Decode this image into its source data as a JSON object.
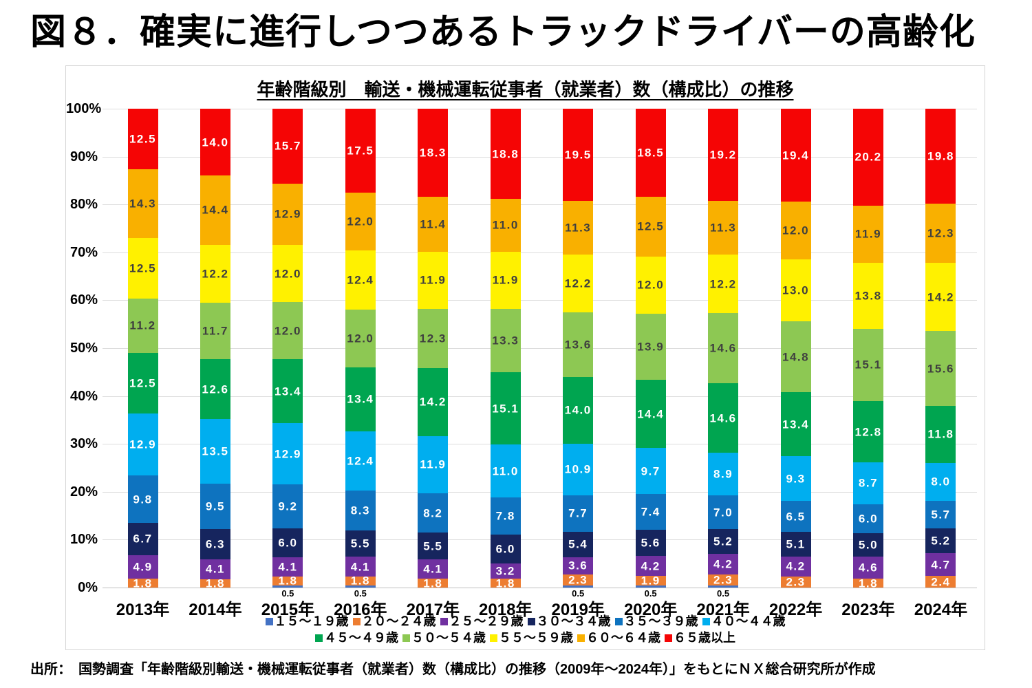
{
  "page_title": "図８．確実に進行しつつあるトラックドライバーの高齢化",
  "source_note": "出所：　国勢調査「年齢階級別輸送・機械運転従事者（就業者）数（構成比）の推移（2009年～2024年）」をもとにＮＸ総合研究所が作成",
  "chart_data": {
    "type": "bar",
    "subtype": "100%-stacked-column",
    "title": "年齢階級別　輸送・機械運転従事者（就業者）数（構成比）の推移",
    "categories": [
      "2013年",
      "2014年",
      "2015年",
      "2016年",
      "2017年",
      "2018年",
      "2019年",
      "2020年",
      "2021年",
      "2022年",
      "2023年",
      "2024年"
    ],
    "y_ticks": [
      "0%",
      "10%",
      "20%",
      "30%",
      "40%",
      "50%",
      "60%",
      "70%",
      "80%",
      "90%",
      "100%"
    ],
    "ylim": [
      0,
      100
    ],
    "grid": true,
    "legend_position": "bottom",
    "value_unit": "%",
    "note": "segments smaller than 1% are labeled beneath the axis",
    "series": [
      {
        "name": "１５～１９歳",
        "color": "#4472c4",
        "label_color": "#000000",
        "values": [
          null,
          null,
          0.5,
          0.5,
          null,
          null,
          0.5,
          0.5,
          0.5,
          null,
          null,
          null
        ]
      },
      {
        "name": "２０～２４歳",
        "color": "#ed7d31",
        "label_color": "#ffffff",
        "values": [
          1.8,
          1.8,
          1.8,
          1.8,
          1.8,
          1.8,
          2.3,
          1.9,
          2.3,
          2.3,
          1.8,
          2.4
        ]
      },
      {
        "name": "２５～２９歳",
        "color": "#7030a0",
        "label_color": "#ffffff",
        "values": [
          4.9,
          4.1,
          4.1,
          4.1,
          4.1,
          3.2,
          3.6,
          4.2,
          4.2,
          4.2,
          4.6,
          4.7
        ]
      },
      {
        "name": "３０～３４歳",
        "color": "#16255e",
        "label_color": "#ffffff",
        "values": [
          6.7,
          6.3,
          6.0,
          5.5,
          5.5,
          6.0,
          5.4,
          5.6,
          5.2,
          5.1,
          5.0,
          5.2
        ]
      },
      {
        "name": "３５～３９歳",
        "color": "#0e73bf",
        "label_color": "#ffffff",
        "values": [
          9.8,
          9.5,
          9.2,
          8.3,
          8.2,
          7.8,
          7.7,
          7.4,
          7.0,
          6.5,
          6.0,
          5.7
        ]
      },
      {
        "name": "４０～４４歳",
        "color": "#00aeef",
        "label_color": "#ffffff",
        "values": [
          12.9,
          13.5,
          12.9,
          12.4,
          11.9,
          11.0,
          10.9,
          9.7,
          8.9,
          9.3,
          8.7,
          8.0
        ]
      },
      {
        "name": "４５～４９歳",
        "color": "#00a550",
        "label_color": "#ffffff",
        "values": [
          12.5,
          12.6,
          13.4,
          13.4,
          14.2,
          15.1,
          14.0,
          14.4,
          14.6,
          13.4,
          12.8,
          11.8
        ]
      },
      {
        "name": "５０～５４歳",
        "color": "#8dc853",
        "label_color": "#3f3f3f",
        "values": [
          11.2,
          11.7,
          12.0,
          12.0,
          12.3,
          13.3,
          13.6,
          13.9,
          14.6,
          14.8,
          15.1,
          15.6
        ]
      },
      {
        "name": "５５～５９歳",
        "color": "#fff100",
        "label_color": "#3f3f3f",
        "values": [
          12.5,
          12.2,
          12.0,
          12.4,
          11.9,
          11.9,
          12.2,
          12.0,
          12.2,
          13.0,
          13.8,
          14.2
        ]
      },
      {
        "name": "６０～６４歳",
        "color": "#f9b000",
        "label_color": "#3f3f3f",
        "values": [
          14.3,
          14.4,
          12.9,
          12.0,
          11.4,
          11.0,
          11.3,
          12.5,
          11.3,
          12.0,
          11.9,
          12.3
        ]
      },
      {
        "name": "６５歳以上",
        "color": "#f50505",
        "label_color": "#ffffff",
        "values": [
          12.5,
          14.0,
          15.7,
          17.5,
          18.3,
          18.8,
          19.5,
          18.5,
          19.2,
          19.4,
          20.2,
          19.8
        ]
      }
    ]
  }
}
